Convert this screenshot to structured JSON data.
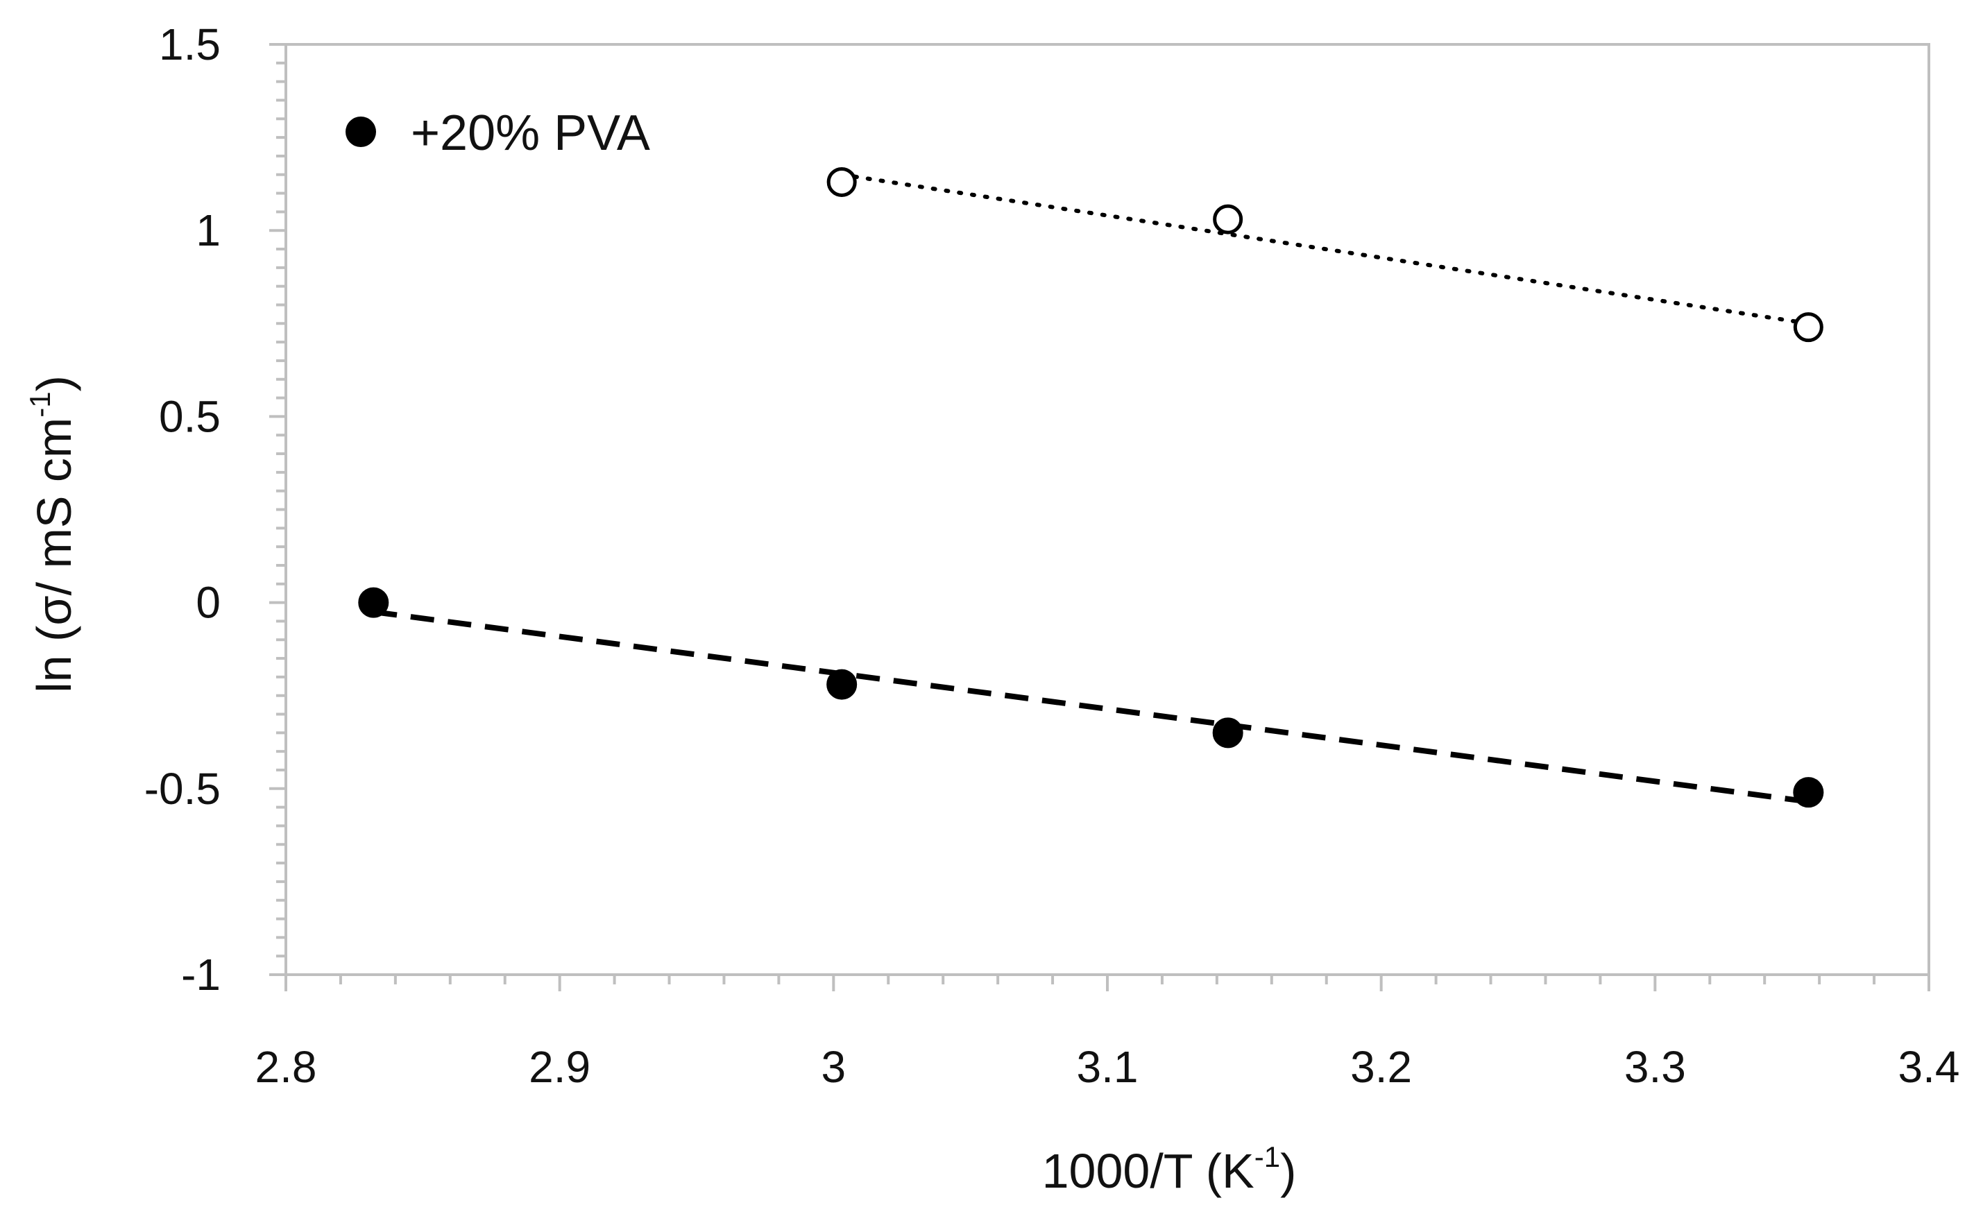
{
  "chart_data": {
    "type": "scatter",
    "title": "",
    "xlabel": {
      "main": "1000/T (K",
      "sup": "-1",
      "close": ")"
    },
    "ylabel": {
      "main": "ln (σ/ mS cm",
      "sup": "-1",
      "close": ")"
    },
    "xlim": [
      2.8,
      3.4
    ],
    "ylim": [
      -1,
      1.5
    ],
    "x_ticks": [
      "2.8",
      "2.9",
      "3",
      "3.1",
      "3.2",
      "3.3",
      "3.4"
    ],
    "y_ticks": [
      "-1",
      "-0.5",
      "0",
      "0.5",
      "1",
      "1.5"
    ],
    "legend": {
      "position": "top-left",
      "entries": [
        "+20% PVA"
      ]
    },
    "series": [
      {
        "name": "+20% PVA",
        "marker": "filled-circle",
        "trendline": "dashed",
        "x": [
          2.832,
          3.003,
          3.144,
          3.356
        ],
        "y": [
          0.0,
          -0.22,
          -0.35,
          -0.51
        ],
        "fit": {
          "x": [
            2.832,
            3.356
          ],
          "y": [
            -0.025,
            -0.535
          ]
        }
      },
      {
        "name": "",
        "marker": "open-circle",
        "trendline": "dotted",
        "x": [
          3.003,
          3.144,
          3.356
        ],
        "y": [
          1.13,
          1.03,
          0.74
        ],
        "fit": {
          "x": [
            3.003,
            3.356
          ],
          "y": [
            1.15,
            0.75
          ]
        }
      }
    ],
    "colors": {
      "marker": "#000000",
      "axis": "#bfbfbf",
      "text": "#111111"
    }
  }
}
